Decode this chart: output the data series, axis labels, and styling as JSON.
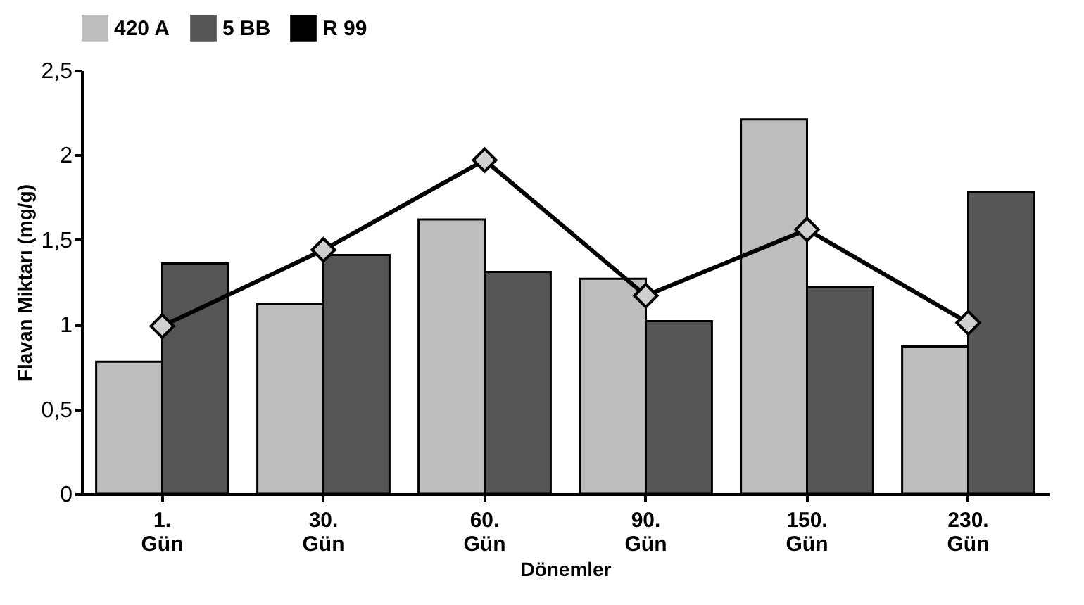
{
  "chart_data": {
    "type": "bar",
    "xlabel": "Dönemler",
    "ylabel": "Flavan Miktarı (mg/g)",
    "categories": [
      "1. Gün",
      "30. Gün",
      "60. Gün",
      "90. Gün",
      "150. Gün",
      "230. Gün"
    ],
    "series": [
      {
        "name": "420 A",
        "color": "#bdbdbd",
        "values": [
          0.78,
          1.12,
          1.62,
          1.27,
          2.21,
          0.87
        ]
      },
      {
        "name": "5 BB",
        "color": "#555555",
        "values": [
          1.36,
          1.41,
          1.31,
          1.02,
          1.22,
          1.78
        ]
      },
      {
        "name": "R 99",
        "type": "line",
        "color": "#000000",
        "marker": "diamond",
        "values": [
          0.99,
          1.44,
          1.97,
          1.17,
          1.56,
          1.01
        ]
      }
    ],
    "ylim": [
      0,
      2.5
    ],
    "yticks": [
      0,
      {
        "value": 0.5,
        "label": "0,5"
      },
      1,
      {
        "value": 1.5,
        "label": "1,5"
      },
      2,
      {
        "value": 2.5,
        "label": "2,5"
      }
    ],
    "grid": false,
    "legend": "top"
  }
}
